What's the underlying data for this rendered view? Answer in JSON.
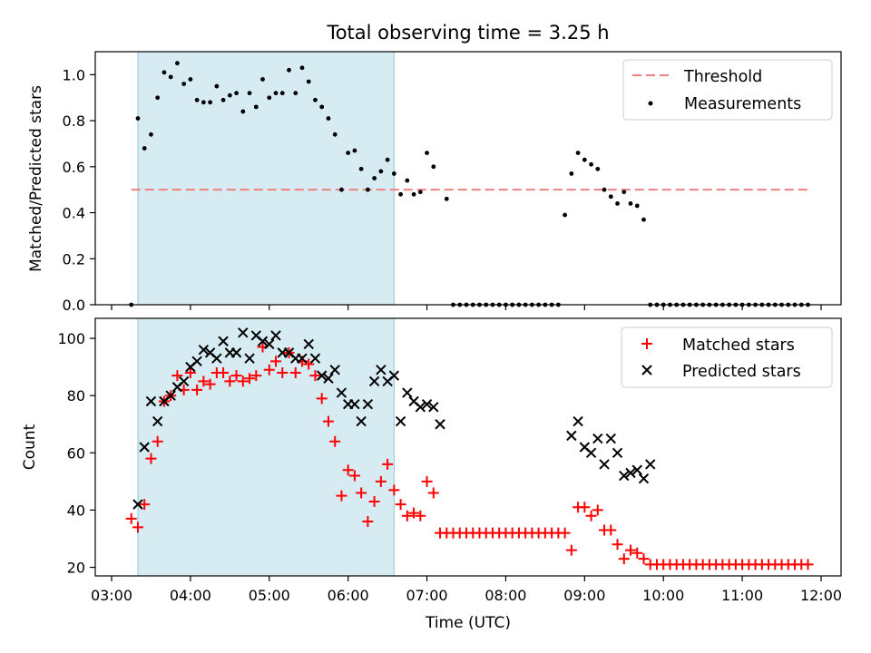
{
  "chart_data": [
    {
      "type": "scatter",
      "title": "Total observing time = 3.25 h",
      "ylabel": "Matched/Predicted stars",
      "xlim": [
        "03:00",
        "12:00"
      ],
      "ylim": [
        0,
        1.1
      ],
      "yticks": [
        "0.0",
        "0.2",
        "0.4",
        "0.6",
        "0.8",
        "1.0"
      ],
      "grid": false,
      "legend_position": "upper right",
      "highlight_span": [
        "03:20",
        "06:35"
      ],
      "colors": {
        "threshold": "#f08080",
        "measurements": "#000000",
        "span": "#add8e6"
      },
      "threshold": {
        "name": "Threshold",
        "value": 0.5,
        "x_range": [
          "03:15",
          "11:50"
        ]
      },
      "series": [
        {
          "name": "Measurements",
          "x": [
            "03:15",
            "03:20",
            "03:25",
            "03:30",
            "03:35",
            "03:40",
            "03:45",
            "03:50",
            "03:55",
            "04:00",
            "04:05",
            "04:10",
            "04:15",
            "04:20",
            "04:25",
            "04:30",
            "04:35",
            "04:40",
            "04:45",
            "04:50",
            "04:55",
            "05:00",
            "05:05",
            "05:10",
            "05:15",
            "05:20",
            "05:25",
            "05:30",
            "05:35",
            "05:40",
            "05:45",
            "05:50",
            "05:55",
            "06:00",
            "06:05",
            "06:10",
            "06:15",
            "06:20",
            "06:25",
            "06:30",
            "06:35",
            "06:40",
            "06:45",
            "06:50",
            "06:55",
            "07:00",
            "07:05",
            "07:15",
            "07:20",
            "07:25",
            "07:30",
            "07:35",
            "07:40",
            "07:45",
            "07:50",
            "07:55",
            "08:00",
            "08:05",
            "08:10",
            "08:15",
            "08:20",
            "08:25",
            "08:30",
            "08:35",
            "08:40",
            "08:45",
            "08:50",
            "08:55",
            "09:00",
            "09:05",
            "09:10",
            "09:15",
            "09:20",
            "09:25",
            "09:30",
            "09:35",
            "09:40",
            "09:45",
            "09:50",
            "09:55",
            "10:00",
            "10:05",
            "10:10",
            "10:15",
            "10:20",
            "10:25",
            "10:30",
            "10:35",
            "10:40",
            "10:45",
            "10:50",
            "10:55",
            "11:00",
            "11:05",
            "11:10",
            "11:15",
            "11:20",
            "11:25",
            "11:30",
            "11:35",
            "11:40",
            "11:45",
            "11:50"
          ],
          "y": [
            0.0,
            0.81,
            0.68,
            0.74,
            0.9,
            1.01,
            0.99,
            1.05,
            0.96,
            0.98,
            0.89,
            0.88,
            0.88,
            0.95,
            0.89,
            0.91,
            0.92,
            0.84,
            0.92,
            0.86,
            0.98,
            0.9,
            0.92,
            0.92,
            1.02,
            0.92,
            1.03,
            0.97,
            0.89,
            0.86,
            0.81,
            0.74,
            0.5,
            0.66,
            0.67,
            0.59,
            0.5,
            0.55,
            0.58,
            0.63,
            0.57,
            0.48,
            0.54,
            0.48,
            0.49,
            0.66,
            0.6,
            0.46,
            0.0,
            0.0,
            0.0,
            0.0,
            0.0,
            0.0,
            0.0,
            0.0,
            0.0,
            0.0,
            0.0,
            0.0,
            0.0,
            0.0,
            0.0,
            0.0,
            0.0,
            0.39,
            0.57,
            0.66,
            0.63,
            0.61,
            0.59,
            0.5,
            0.47,
            0.44,
            0.49,
            0.44,
            0.43,
            0.37,
            0.0,
            0.0,
            0.0,
            0.0,
            0.0,
            0.0,
            0.0,
            0.0,
            0.0,
            0.0,
            0.0,
            0.0,
            0.0,
            0.0,
            0.0,
            0.0,
            0.0,
            0.0,
            0.0,
            0.0,
            0.0,
            0.0,
            0.0,
            0.0,
            0.0
          ]
        }
      ]
    },
    {
      "type": "scatter",
      "xlabel": "Time (UTC)",
      "ylabel": "Count",
      "xlim": [
        "03:00",
        "12:00"
      ],
      "xticks": [
        "03:00",
        "04:00",
        "05:00",
        "06:00",
        "07:00",
        "08:00",
        "09:00",
        "10:00",
        "11:00",
        "12:00"
      ],
      "ylim": [
        17,
        107
      ],
      "yticks": [
        "20",
        "40",
        "60",
        "80",
        "100"
      ],
      "grid": false,
      "legend_position": "upper right",
      "highlight_span": [
        "03:20",
        "06:35"
      ],
      "colors": {
        "matched": "#ff0000",
        "predicted": "#000000",
        "span": "#add8e6"
      },
      "series": [
        {
          "name": "Matched stars",
          "marker": "+",
          "x": [
            "03:15",
            "03:20",
            "03:25",
            "03:30",
            "03:35",
            "03:40",
            "03:45",
            "03:50",
            "03:55",
            "04:00",
            "04:05",
            "04:10",
            "04:15",
            "04:20",
            "04:25",
            "04:30",
            "04:35",
            "04:40",
            "04:45",
            "04:50",
            "04:55",
            "05:00",
            "05:05",
            "05:10",
            "05:15",
            "05:20",
            "05:25",
            "05:30",
            "05:35",
            "05:40",
            "05:45",
            "05:50",
            "05:55",
            "06:00",
            "06:05",
            "06:10",
            "06:15",
            "06:20",
            "06:25",
            "06:30",
            "06:35",
            "06:40",
            "06:45",
            "06:50",
            "06:55",
            "07:00",
            "07:05",
            "07:10",
            "07:15",
            "07:20",
            "07:25",
            "07:30",
            "07:35",
            "07:40",
            "07:45",
            "07:50",
            "07:55",
            "08:00",
            "08:05",
            "08:10",
            "08:15",
            "08:20",
            "08:25",
            "08:30",
            "08:35",
            "08:40",
            "08:45",
            "08:50",
            "08:55",
            "09:00",
            "09:05",
            "09:10",
            "09:15",
            "09:20",
            "09:25",
            "09:30",
            "09:35",
            "09:40",
            "09:45",
            "09:50",
            "09:55",
            "10:00",
            "10:05",
            "10:10",
            "10:15",
            "10:20",
            "10:25",
            "10:30",
            "10:35",
            "10:40",
            "10:45",
            "10:50",
            "10:55",
            "11:00",
            "11:05",
            "11:10",
            "11:15",
            "11:20",
            "11:25",
            "11:30",
            "11:35",
            "11:40",
            "11:45",
            "11:50"
          ],
          "y": [
            37,
            34,
            42,
            58,
            64,
            78,
            80,
            87,
            82,
            88,
            82,
            85,
            84,
            88,
            88,
            85,
            87,
            85,
            86,
            87,
            97,
            89,
            92,
            88,
            95,
            88,
            92,
            91,
            87,
            79,
            71,
            64,
            45,
            54,
            52,
            46,
            36,
            43,
            50,
            56,
            47,
            42,
            38,
            39,
            38,
            50,
            46,
            32,
            32,
            32,
            32,
            32,
            32,
            32,
            32,
            32,
            32,
            32,
            32,
            32,
            32,
            32,
            32,
            32,
            32,
            32,
            32,
            26,
            41,
            41,
            38,
            40,
            33,
            33,
            28,
            23,
            26,
            25,
            23,
            21,
            21,
            21,
            21,
            21,
            21,
            21,
            21,
            21,
            21,
            21,
            21,
            21,
            21,
            21,
            21,
            21,
            21,
            21,
            21,
            21,
            21,
            21,
            21,
            21
          ]
        },
        {
          "name": "Predicted stars",
          "marker": "x",
          "x": [
            "03:20",
            "03:25",
            "03:30",
            "03:35",
            "03:40",
            "03:45",
            "03:50",
            "03:55",
            "04:00",
            "04:05",
            "04:10",
            "04:15",
            "04:20",
            "04:25",
            "04:30",
            "04:35",
            "04:40",
            "04:45",
            "04:50",
            "04:55",
            "05:00",
            "05:05",
            "05:10",
            "05:15",
            "05:20",
            "05:25",
            "05:30",
            "05:35",
            "05:40",
            "05:45",
            "05:50",
            "05:55",
            "06:00",
            "06:05",
            "06:10",
            "06:15",
            "06:20",
            "06:25",
            "06:30",
            "06:35",
            "06:40",
            "06:45",
            "06:50",
            "06:55",
            "07:00",
            "07:05",
            "07:10",
            "08:50",
            "08:55",
            "09:00",
            "09:05",
            "09:10",
            "09:15",
            "09:20",
            "09:25",
            "09:30",
            "09:35",
            "09:40",
            "09:45",
            "09:50"
          ],
          "y": [
            42,
            62,
            78,
            71,
            78,
            80,
            83,
            85,
            90,
            92,
            96,
            95,
            93,
            99,
            95,
            95,
            102,
            93,
            101,
            99,
            98,
            101,
            95,
            95,
            93,
            93,
            98,
            93,
            87,
            86,
            89,
            81,
            77,
            77,
            71,
            77,
            85,
            89,
            85,
            87,
            71,
            81,
            78,
            76,
            77,
            76,
            70,
            66,
            71,
            62,
            60,
            65,
            56,
            65,
            60,
            52,
            53,
            54,
            51,
            56
          ]
        }
      ]
    }
  ]
}
